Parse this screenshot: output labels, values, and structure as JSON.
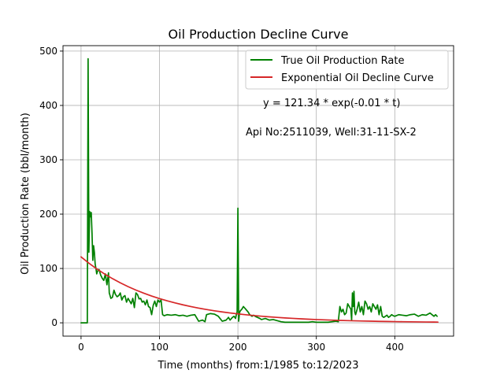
{
  "chart_data": {
    "type": "line",
    "title": "Oil Production Decline Curve",
    "xlabel": "Time (months) from:1/1985 to:12/2023",
    "ylabel": "Oil Production Rate (bbl/month)",
    "xlim": [
      -23,
      475
    ],
    "ylim": [
      -24.5,
      510
    ],
    "xticks": [
      0,
      100,
      200,
      300,
      400
    ],
    "yticks": [
      0,
      100,
      200,
      300,
      400,
      500
    ],
    "grid": true,
    "legend_position": "top-right",
    "annotations": [
      "y = 121.34 * exp(-0.01 * t)",
      "Api No:2511039, Well:31-11-SX-2"
    ],
    "series": [
      {
        "name": "True Oil Production Rate",
        "color": "#008000",
        "x": [
          0,
          3,
          6,
          7,
          8,
          9,
          10,
          11,
          12,
          13,
          14,
          15,
          16,
          17,
          18,
          19,
          20,
          21,
          23,
          25,
          27,
          29,
          31,
          33,
          35,
          36,
          38,
          40,
          42,
          44,
          46,
          48,
          50,
          52,
          54,
          56,
          58,
          60,
          62,
          64,
          66,
          68,
          70,
          72,
          74,
          76,
          78,
          80,
          82,
          84,
          86,
          88,
          90,
          92,
          94,
          96,
          98,
          100,
          102,
          104,
          106,
          110,
          115,
          120,
          125,
          130,
          135,
          140,
          145,
          150,
          155,
          158,
          160,
          165,
          170,
          175,
          180,
          185,
          188,
          190,
          193,
          195,
          197,
          198,
          199,
          200,
          201,
          202,
          203,
          205,
          207,
          210,
          213,
          215,
          218,
          220,
          222,
          225,
          228,
          230,
          235,
          240,
          245,
          250,
          255,
          260,
          265,
          270,
          275,
          280,
          285,
          290,
          295,
          300,
          305,
          310,
          315,
          320,
          325,
          328,
          330,
          332,
          334,
          336,
          338,
          340,
          342,
          344,
          345,
          346,
          347,
          348,
          349,
          350,
          352,
          354,
          356,
          358,
          360,
          362,
          364,
          366,
          368,
          370,
          372,
          374,
          376,
          378,
          380,
          382,
          384,
          386,
          388,
          390,
          392,
          394,
          396,
          398,
          400,
          405,
          410,
          415,
          420,
          425,
          430,
          435,
          440,
          445,
          450,
          452,
          454
        ],
        "y": [
          0,
          0,
          0,
          0,
          0,
          486,
          130,
          205,
          195,
          203,
          165,
          115,
          142,
          130,
          108,
          100,
          90,
          95,
          98,
          88,
          82,
          78,
          90,
          70,
          92,
          55,
          45,
          47,
          60,
          52,
          48,
          50,
          55,
          42,
          48,
          50,
          38,
          45,
          40,
          35,
          45,
          28,
          55,
          52,
          44,
          45,
          38,
          40,
          33,
          42,
          30,
          28,
          15,
          32,
          40,
          30,
          42,
          38,
          42,
          15,
          13,
          15,
          14,
          15,
          13,
          14,
          12,
          14,
          15,
          3,
          5,
          2,
          15,
          17,
          16,
          12,
          3,
          5,
          10,
          5,
          10,
          12,
          8,
          15,
          20,
          211,
          3,
          18,
          22,
          25,
          30,
          25,
          20,
          15,
          12,
          14,
          12,
          10,
          8,
          6,
          8,
          5,
          6,
          4,
          2,
          1,
          1,
          1,
          1,
          1,
          1,
          1,
          2,
          1,
          1,
          1,
          1,
          2,
          3,
          2,
          30,
          20,
          25,
          15,
          18,
          35,
          30,
          25,
          5,
          55,
          30,
          58,
          20,
          15,
          25,
          38,
          20,
          30,
          15,
          40,
          35,
          25,
          30,
          20,
          35,
          30,
          25,
          33,
          15,
          30,
          12,
          10,
          12,
          14,
          10,
          12,
          15,
          13,
          12,
          15,
          14,
          13,
          15,
          16,
          12,
          15,
          14,
          18,
          12,
          15,
          12
        ]
      },
      {
        "name": "Exponential Oil Decline Curve",
        "color": "#d62728",
        "x": [
          0,
          10,
          20,
          30,
          40,
          50,
          60,
          70,
          80,
          90,
          100,
          110,
          120,
          130,
          140,
          150,
          160,
          170,
          180,
          190,
          200,
          210,
          220,
          230,
          240,
          250,
          260,
          270,
          280,
          290,
          300,
          310,
          320,
          330,
          340,
          350,
          360,
          370,
          380,
          390,
          400,
          410,
          420,
          430,
          440,
          450,
          455
        ],
        "y": [
          121.34,
          109.79,
          99.34,
          89.89,
          81.34,
          73.6,
          66.59,
          60.26,
          54.52,
          49.33,
          44.64,
          40.39,
          36.55,
          33.07,
          29.92,
          27.07,
          24.5,
          22.17,
          20.06,
          18.15,
          16.42,
          14.86,
          13.44,
          12.16,
          11.0,
          9.96,
          9.01,
          8.15,
          7.38,
          6.67,
          6.04,
          5.47,
          4.95,
          4.48,
          4.05,
          3.66,
          3.31,
          3.0,
          2.71,
          2.45,
          2.22,
          2.01,
          1.82,
          1.65,
          1.49,
          1.35,
          1.28
        ]
      }
    ]
  }
}
